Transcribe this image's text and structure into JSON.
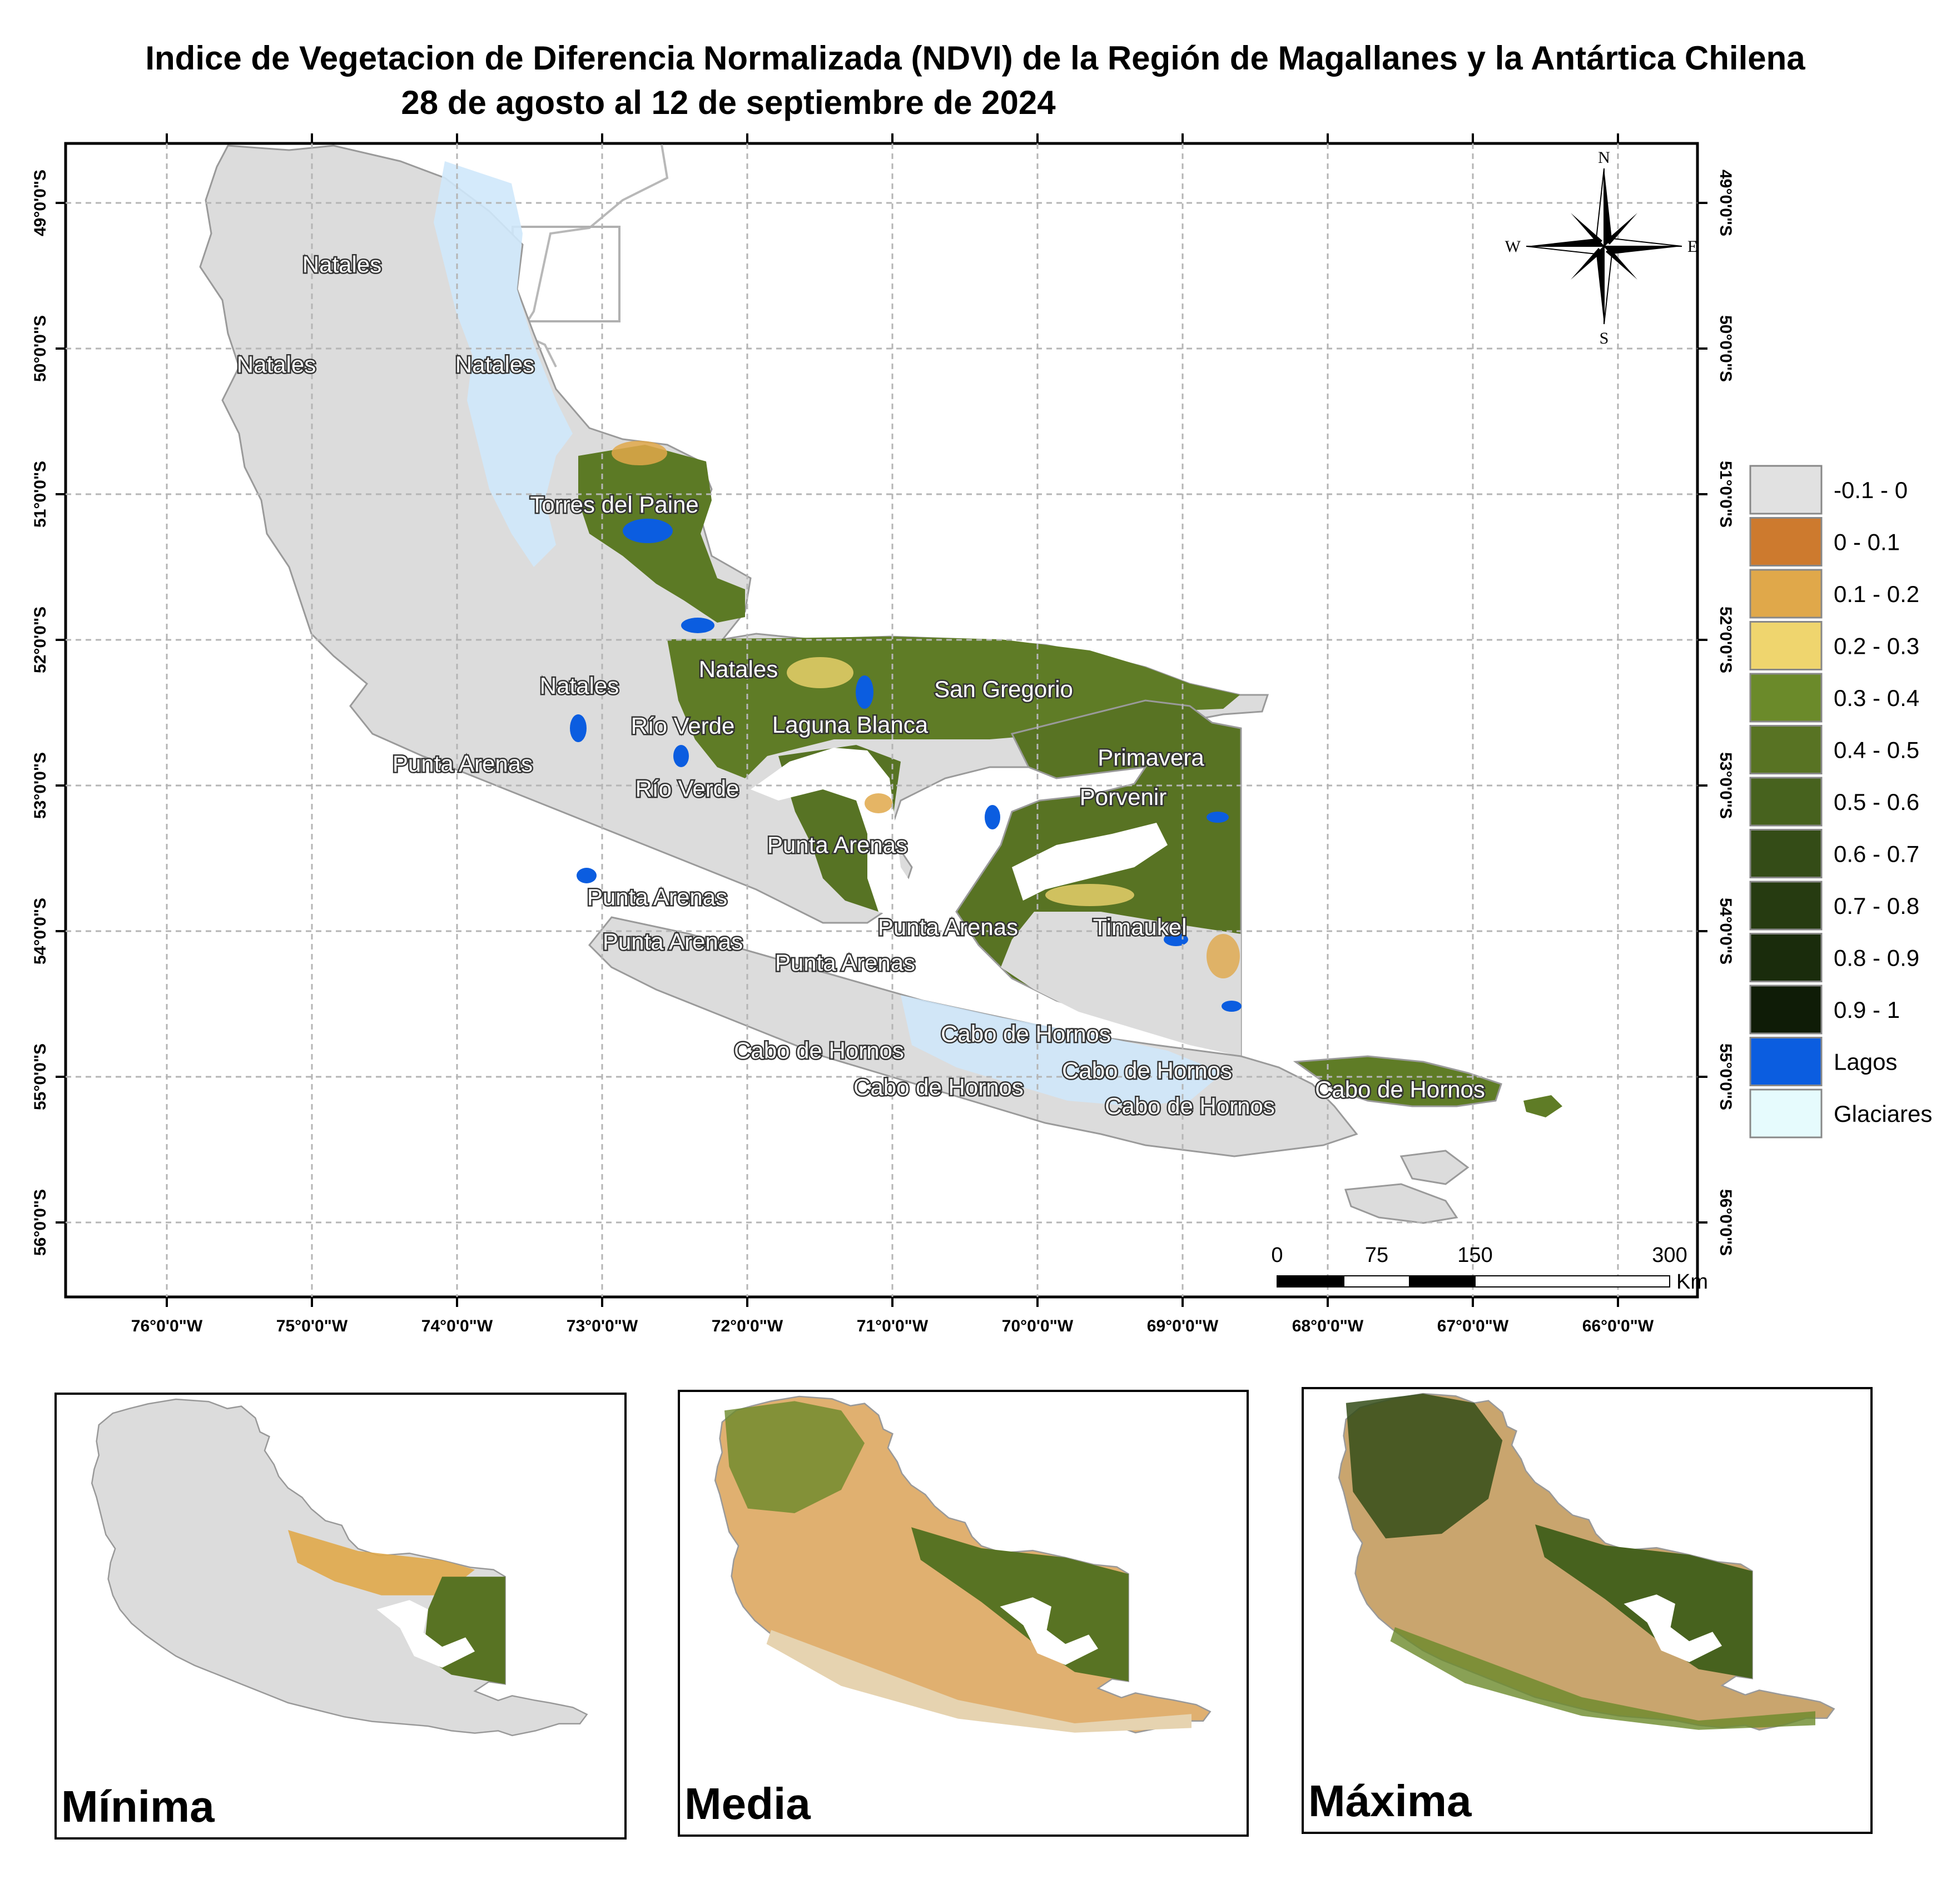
{
  "title": {
    "line1": "Indice de Vegetacion de Diferencia Normalizada (NDVI) de la Región de Magallanes y la Antártica Chilena",
    "line2": "28 de agosto al 12 de septiembre de 2024"
  },
  "axes": {
    "longitude_labels": [
      "76°0'0\"W",
      "75°0'0\"W",
      "74°0'0\"W",
      "73°0'0\"W",
      "72°0'0\"W",
      "71°0'0\"W",
      "70°0'0\"W",
      "69°0'0\"W",
      "68°0'0\"W",
      "67°0'0\"W",
      "66°0'0\"W"
    ],
    "latitude_labels": [
      "49°0'0\"S",
      "50°0'0\"S",
      "51°0'0\"S",
      "52°0'0\"S",
      "53°0'0\"S",
      "54°0'0\"S",
      "55°0'0\"S",
      "56°0'0\"S"
    ]
  },
  "places": [
    "Natales",
    "Natales",
    "Natales",
    "Torres del Paine",
    "Natales",
    "Natales",
    "San Gregorio",
    "Río Verde",
    "Laguna Blanca",
    "Primavera",
    "Río Verde",
    "Punta Arenas",
    "Porvenir",
    "Punta Arenas",
    "Punta Arenas",
    "Punta Arenas",
    "Timaukel",
    "Punta Arenas",
    "Punta Arenas",
    "Cabo de Hornos",
    "Cabo de Hornos",
    "Cabo de Hornos",
    "Cabo de Hornos",
    "Cabo de Hornos",
    "Cabo de Hornos"
  ],
  "compass": {
    "n": "N",
    "s": "S",
    "e": "E",
    "w": "W"
  },
  "scale_bar": {
    "ticks": [
      "0",
      "75",
      "150",
      "300"
    ],
    "unit": "Km"
  },
  "legend": [
    {
      "label": "-0.1 - 0",
      "color": "#e1e1e1"
    },
    {
      "label": "0 - 0.1",
      "color": "#cd7a2e"
    },
    {
      "label": "0.1 - 0.2",
      "color": "#e0a84a"
    },
    {
      "label": "0.2 - 0.3",
      "color": "#efd56e"
    },
    {
      "label": "0.3 - 0.4",
      "color": "#6b8a2a"
    },
    {
      "label": "0.4 - 0.5",
      "color": "#587323"
    },
    {
      "label": "0.5 - 0.6",
      "color": "#47621e"
    },
    {
      "label": "0.6 - 0.7",
      "color": "#344c17"
    },
    {
      "label": "0.7 - 0.8",
      "color": "#263b11"
    },
    {
      "label": "0.8 - 0.9",
      "color": "#1a2c0c"
    },
    {
      "label": "0.9 - 1",
      "color": "#0f1c07"
    },
    {
      "label": "Lagos",
      "color": "#0b5de0"
    },
    {
      "label": "Glaciares",
      "color": "#e6fbfd"
    }
  ],
  "insets": [
    {
      "label": "Mínima",
      "vegetation": "mostly-low"
    },
    {
      "label": "Media",
      "vegetation": "mixed"
    },
    {
      "label": "Máxima",
      "vegetation": "mostly-high"
    }
  ]
}
